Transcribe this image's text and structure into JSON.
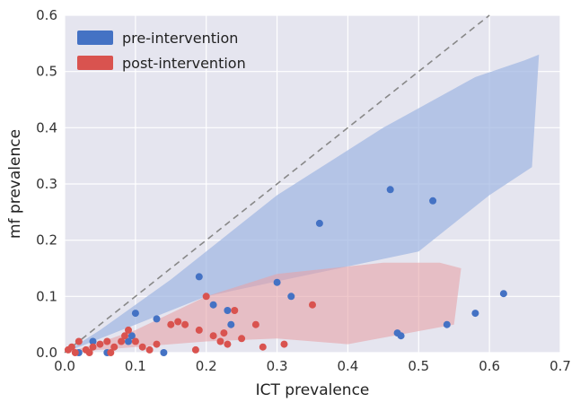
{
  "chart_data": {
    "type": "scatter",
    "xlabel": "ICT prevalence",
    "ylabel": "mf prevalence",
    "xlim": [
      0,
      0.7
    ],
    "ylim": [
      0,
      0.6
    ],
    "xticks": [
      "0.0",
      "0.1",
      "0.2",
      "0.3",
      "0.4",
      "0.5",
      "0.6",
      "0.7"
    ],
    "yticks": [
      "0.0",
      "0.1",
      "0.2",
      "0.3",
      "0.4",
      "0.5",
      "0.6"
    ],
    "grid": true,
    "background": "#e5e5ef",
    "legend_position": "top-left",
    "reference_line": {
      "style": "dashed",
      "color": "#888888",
      "points": [
        [
          0,
          0
        ],
        [
          0.6,
          0.6
        ]
      ]
    },
    "series": [
      {
        "name": "pre-intervention",
        "color": "#4472c4",
        "band_color": "#a3b8e3",
        "band": [
          [
            0,
            0
          ],
          [
            0.1,
            0.05
          ],
          [
            0.2,
            0.1
          ],
          [
            0.35,
            0.14
          ],
          [
            0.5,
            0.18
          ],
          [
            0.6,
            0.28
          ],
          [
            0.66,
            0.33
          ],
          [
            0.67,
            0.53
          ],
          [
            0.65,
            0.52
          ],
          [
            0.58,
            0.49
          ],
          [
            0.45,
            0.4
          ],
          [
            0.3,
            0.28
          ],
          [
            0.15,
            0.13
          ],
          [
            0.05,
            0.04
          ]
        ],
        "points": [
          [
            0.04,
            0.02
          ],
          [
            0.1,
            0.07
          ],
          [
            0.13,
            0.06
          ],
          [
            0.19,
            0.135
          ],
          [
            0.21,
            0.085
          ],
          [
            0.23,
            0.075
          ],
          [
            0.235,
            0.05
          ],
          [
            0.3,
            0.125
          ],
          [
            0.32,
            0.1
          ],
          [
            0.36,
            0.23
          ],
          [
            0.46,
            0.29
          ],
          [
            0.52,
            0.27
          ],
          [
            0.47,
            0.035
          ],
          [
            0.475,
            0.03
          ],
          [
            0.54,
            0.05
          ],
          [
            0.58,
            0.07
          ],
          [
            0.62,
            0.105
          ],
          [
            0.09,
            0.02
          ],
          [
            0.095,
            0.03
          ],
          [
            0.14,
            0.0
          ],
          [
            0.06,
            0.0
          ],
          [
            0.02,
            0.0
          ]
        ]
      },
      {
        "name": "post-intervention",
        "color": "#d9534f",
        "band_color": "#e6a3a8",
        "band": [
          [
            0,
            0
          ],
          [
            0.1,
            0.01
          ],
          [
            0.2,
            0.02
          ],
          [
            0.3,
            0.025
          ],
          [
            0.4,
            0.015
          ],
          [
            0.55,
            0.05
          ],
          [
            0.56,
            0.15
          ],
          [
            0.53,
            0.16
          ],
          [
            0.45,
            0.16
          ],
          [
            0.3,
            0.14
          ],
          [
            0.2,
            0.1
          ],
          [
            0.1,
            0.04
          ],
          [
            0.03,
            0.01
          ]
        ],
        "points": [
          [
            0.005,
            0.005
          ],
          [
            0.01,
            0.01
          ],
          [
            0.02,
            0.02
          ],
          [
            0.03,
            0.005
          ],
          [
            0.04,
            0.01
          ],
          [
            0.05,
            0.015
          ],
          [
            0.06,
            0.02
          ],
          [
            0.07,
            0.01
          ],
          [
            0.08,
            0.02
          ],
          [
            0.085,
            0.03
          ],
          [
            0.09,
            0.04
          ],
          [
            0.1,
            0.02
          ],
          [
            0.11,
            0.01
          ],
          [
            0.13,
            0.015
          ],
          [
            0.15,
            0.05
          ],
          [
            0.16,
            0.055
          ],
          [
            0.17,
            0.05
          ],
          [
            0.19,
            0.04
          ],
          [
            0.2,
            0.1
          ],
          [
            0.21,
            0.03
          ],
          [
            0.22,
            0.02
          ],
          [
            0.225,
            0.035
          ],
          [
            0.23,
            0.015
          ],
          [
            0.24,
            0.075
          ],
          [
            0.25,
            0.025
          ],
          [
            0.27,
            0.05
          ],
          [
            0.28,
            0.01
          ],
          [
            0.31,
            0.015
          ],
          [
            0.35,
            0.085
          ],
          [
            0.015,
            0.0
          ],
          [
            0.035,
            0.0
          ],
          [
            0.065,
            0.0
          ],
          [
            0.12,
            0.005
          ],
          [
            0.185,
            0.005
          ]
        ]
      }
    ]
  }
}
